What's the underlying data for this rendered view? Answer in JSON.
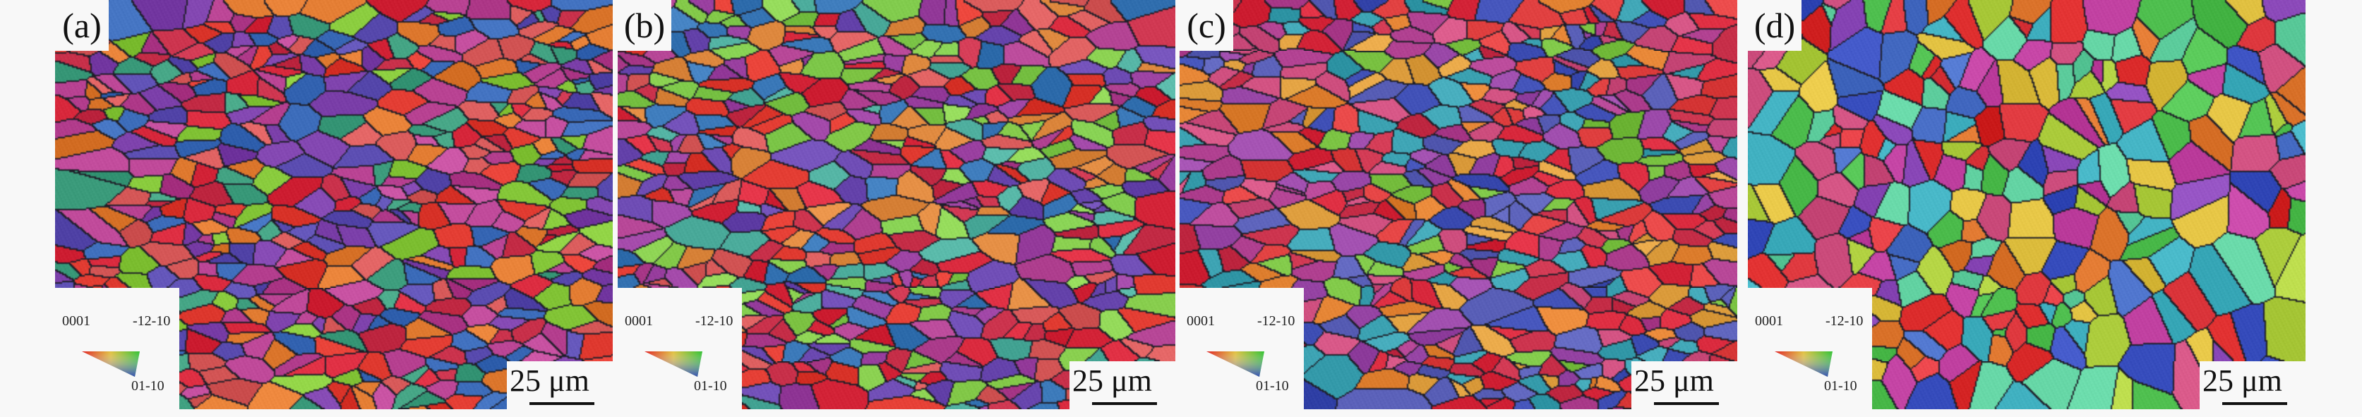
{
  "panels": [
    {
      "label": "(a)",
      "scale_bar": "25 μm",
      "legend": {
        "corner_0001": "0001",
        "corner_m12m10": "-12-10",
        "corner_01m10": "01-10"
      },
      "palette": [
        "#d8283c",
        "#c8304a",
        "#e03a30",
        "#b03a8a",
        "#7a3ea8",
        "#5a4cb0",
        "#86c83a",
        "#e07a30",
        "#c04a9a",
        "#3a6ab8",
        "#d85a5a",
        "#40a080"
      ]
    },
    {
      "label": "(b)",
      "scale_bar": "25 μm",
      "legend": {
        "corner_0001": "0001",
        "corner_m12m10": "-12-10",
        "corner_01m10": "01-10"
      },
      "palette": [
        "#d8283c",
        "#c8304a",
        "#e03a30",
        "#7ec84a",
        "#8ad050",
        "#6a48b0",
        "#b04090",
        "#3a78b8",
        "#e08a40",
        "#50b0a0",
        "#d85a5a",
        "#9a40a0"
      ]
    },
    {
      "label": "(c)",
      "scale_bar": "25 μm",
      "legend": {
        "corner_0001": "0001",
        "corner_m12m10": "-12-10",
        "corner_01m10": "01-10"
      },
      "palette": [
        "#d8283c",
        "#e04040",
        "#c8304a",
        "#78c040",
        "#5a60b8",
        "#b04090",
        "#e08030",
        "#3aa0b0",
        "#d05080",
        "#3a4ab0",
        "#e0a040",
        "#9a48a8"
      ]
    },
    {
      "label": "(d)",
      "scale_bar": "25 μm",
      "legend": {
        "corner_0001": "0001",
        "corner_m12m10": "-12-10",
        "corner_01m10": "01-10"
      },
      "palette": [
        "#d82828",
        "#e03a40",
        "#3a50c0",
        "#4a70c8",
        "#50c050",
        "#e07830",
        "#c040a0",
        "#8a48b8",
        "#40b0c0",
        "#e0c040",
        "#d05080",
        "#60d0a0",
        "#b0d040"
      ]
    }
  ]
}
